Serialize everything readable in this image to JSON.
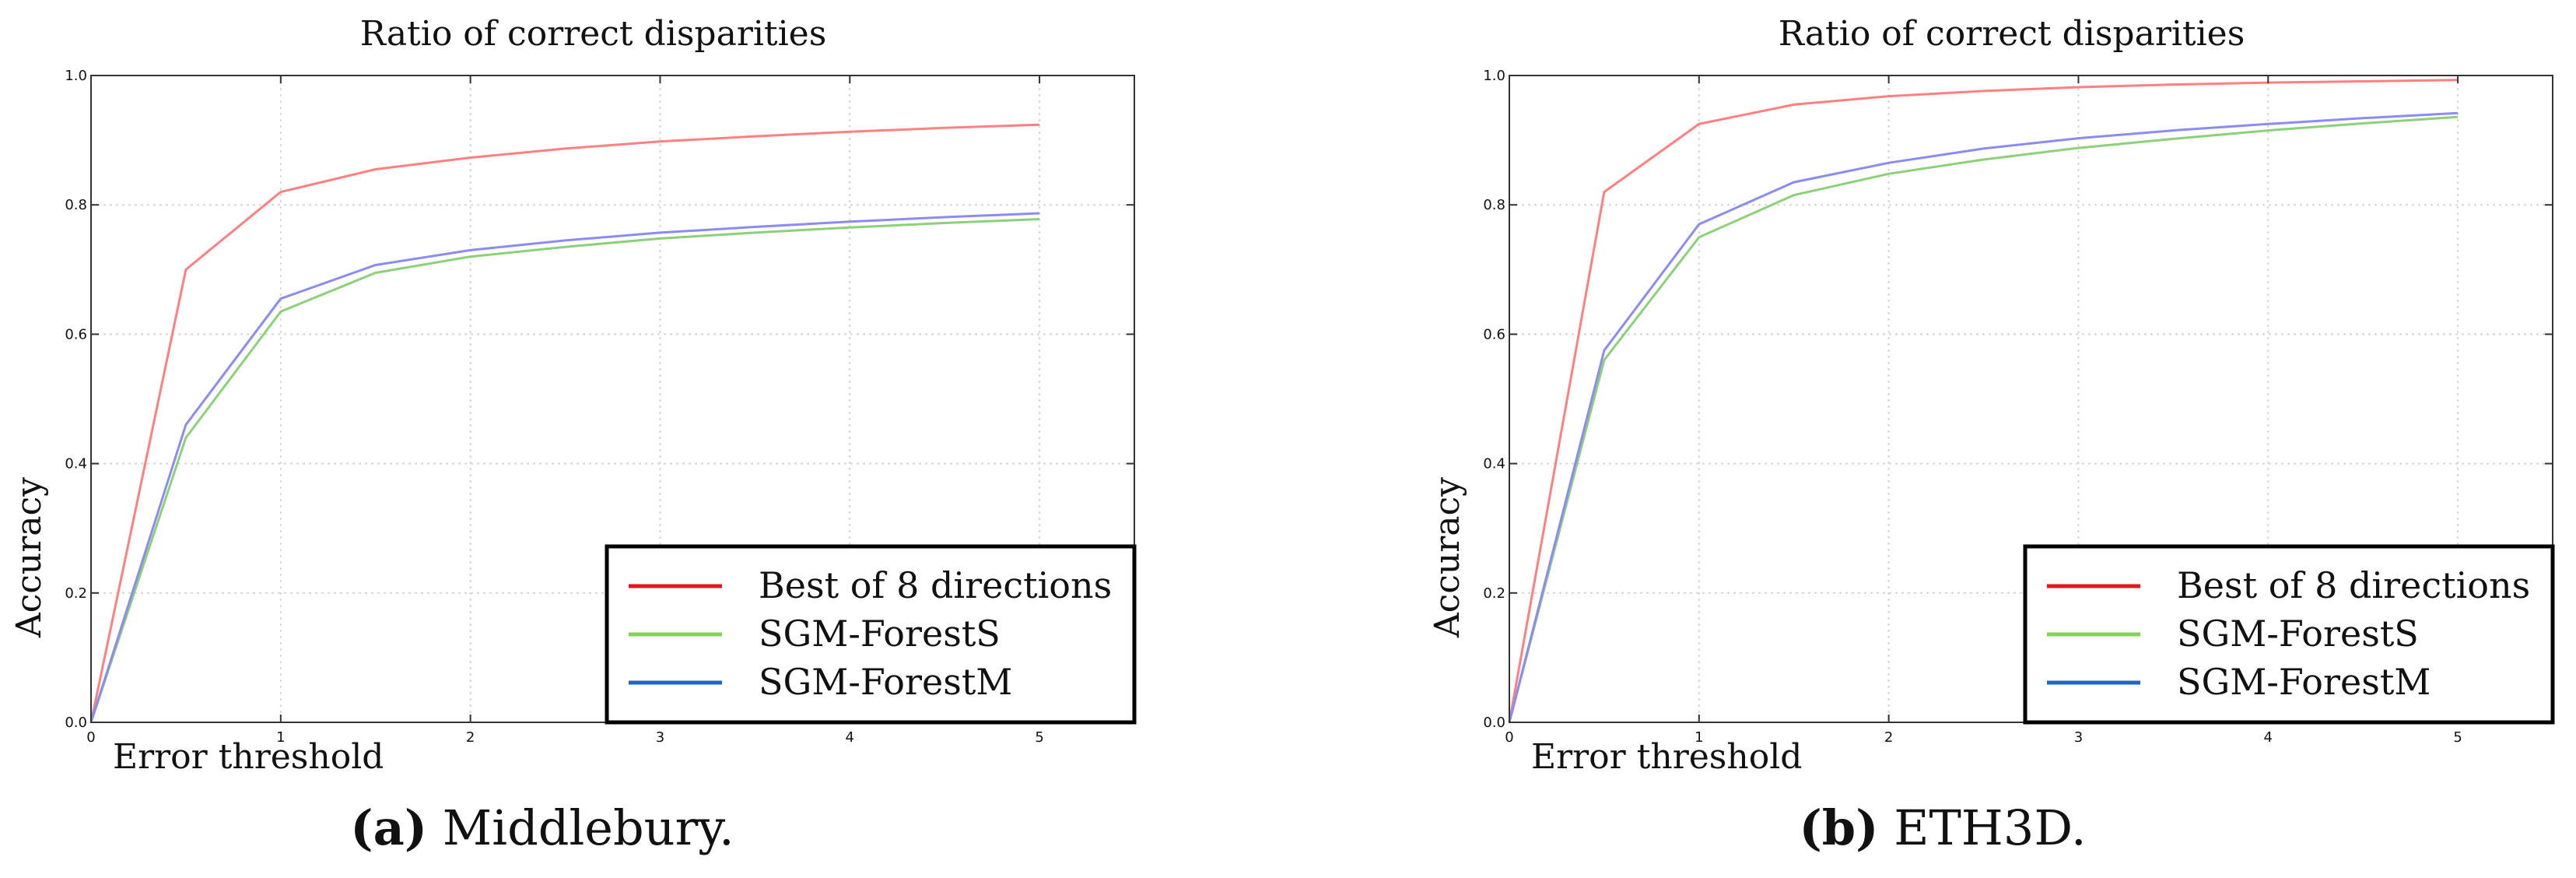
{
  "chart_data": [
    {
      "type": "line",
      "title": "Ratio of correct disparities",
      "xlabel": "Error threshold",
      "ylabel": "Accuracy",
      "xlim": [
        0,
        5.5
      ],
      "ylim": [
        0,
        1.0
      ],
      "xticks": [
        "0",
        "1",
        "2",
        "3",
        "4",
        "5"
      ],
      "yticks": [
        "0.0",
        "0.2",
        "0.4",
        "0.6",
        "0.8",
        "1.0"
      ],
      "grid": true,
      "legend_position": "lower-right",
      "caption_prefix": "(a)",
      "caption_text": "Middlebury.",
      "x": [
        0,
        0.5,
        1,
        1.5,
        2,
        2.5,
        3,
        3.5,
        4,
        4.5,
        5
      ],
      "series": [
        {
          "name": "Best of 8 directions",
          "color": "#ff8080",
          "legend_color": "#e8141c",
          "values": [
            0,
            0.7,
            0.82,
            0.855,
            0.873,
            0.887,
            0.898,
            0.906,
            0.913,
            0.919,
            0.924
          ]
        },
        {
          "name": "SGM-ForestS",
          "color": "#8cd17a",
          "legend_color": "#86d15c",
          "values": [
            0,
            0.44,
            0.635,
            0.695,
            0.72,
            0.735,
            0.748,
            0.757,
            0.765,
            0.772,
            0.778
          ]
        },
        {
          "name": "SGM-ForestM",
          "color": "#8c8cf0",
          "legend_color": "#1f66c4",
          "values": [
            0,
            0.46,
            0.655,
            0.707,
            0.73,
            0.745,
            0.757,
            0.766,
            0.774,
            0.781,
            0.787
          ]
        }
      ]
    },
    {
      "type": "line",
      "title": "Ratio of correct disparities",
      "xlabel": "Error threshold",
      "ylabel": "Accuracy",
      "xlim": [
        0,
        5.5
      ],
      "ylim": [
        0,
        1.0
      ],
      "xticks": [
        "0",
        "1",
        "2",
        "3",
        "4",
        "5"
      ],
      "yticks": [
        "0.0",
        "0.2",
        "0.4",
        "0.6",
        "0.8",
        "1.0"
      ],
      "grid": true,
      "legend_position": "lower-right",
      "caption_prefix": "(b)",
      "caption_text": "ETH3D.",
      "x": [
        0,
        0.5,
        1,
        1.5,
        2,
        2.5,
        3,
        3.5,
        4,
        4.5,
        5
      ],
      "series": [
        {
          "name": "Best of 8 directions",
          "color": "#ff8080",
          "legend_color": "#e8141c",
          "values": [
            0,
            0.82,
            0.925,
            0.955,
            0.968,
            0.976,
            0.982,
            0.986,
            0.989,
            0.991,
            0.993
          ]
        },
        {
          "name": "SGM-ForestS",
          "color": "#8cd17a",
          "legend_color": "#86d15c",
          "values": [
            0,
            0.56,
            0.75,
            0.815,
            0.848,
            0.87,
            0.888,
            0.902,
            0.915,
            0.926,
            0.936
          ]
        },
        {
          "name": "SGM-ForestM",
          "color": "#8c8cf0",
          "legend_color": "#1f66c4",
          "values": [
            0,
            0.575,
            0.77,
            0.835,
            0.865,
            0.887,
            0.903,
            0.915,
            0.925,
            0.934,
            0.942
          ]
        }
      ]
    }
  ]
}
